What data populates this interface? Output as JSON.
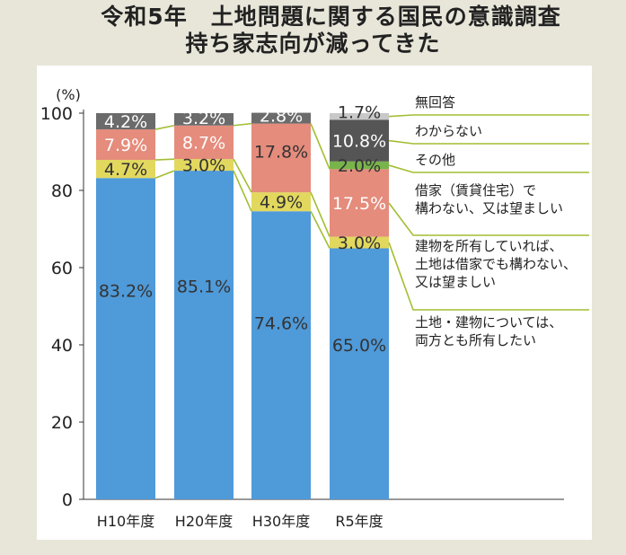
{
  "title": "令和5年　土地問題に関する国民の意識調査",
  "subtitle": "持ち家志向が減ってきた",
  "chart_data": {
    "type": "bar",
    "stacked": true,
    "percent_stacked": true,
    "categories": [
      "H10年度",
      "H20年度",
      "H30年度",
      "R5年度"
    ],
    "ylabel": "(%)",
    "ylim": [
      0,
      100
    ],
    "yticks": [
      0,
      20,
      40,
      60,
      80,
      100
    ],
    "grid": false,
    "legend_placement": "right",
    "series": [
      {
        "name": "土地・建物については、両方とも所有したい",
        "color": "#4f9ad9",
        "values": [
          83.2,
          85.1,
          74.6,
          65.0
        ],
        "labels": [
          "83.2%",
          "85.1%",
          "74.6%",
          "65.0%"
        ]
      },
      {
        "name": "建物を所有していれば、土地は借家でも構わない、又は望ましい",
        "color": "#e2d85e",
        "values": [
          4.7,
          3.0,
          4.9,
          3.0
        ],
        "labels": [
          "4.7%",
          "3.0%",
          "4.9%",
          "3.0%"
        ]
      },
      {
        "name": "借家（賃貸住宅）で構わない、又は望ましい",
        "color": "#e58c7c",
        "values": [
          7.9,
          8.7,
          17.8,
          17.5
        ],
        "labels": [
          "7.9%",
          "8.7%",
          "17.8%",
          "17.5%"
        ]
      },
      {
        "name": "その他",
        "color": "#78b44a",
        "values": [
          0,
          0,
          0,
          2.0
        ],
        "labels": [
          "",
          "",
          "",
          "2.0%"
        ]
      },
      {
        "name": "わからない",
        "color": "#555555",
        "values": [
          0,
          0,
          0,
          10.8
        ],
        "labels": [
          "",
          "",
          "",
          "10.8%"
        ]
      },
      {
        "name": "無回答",
        "color": "#6b6b6b",
        "values": [
          4.2,
          3.2,
          2.8,
          1.7
        ],
        "labels": [
          "4.2%",
          "3.2%",
          "2.8%",
          "1.7%"
        ]
      }
    ],
    "legend": [
      {
        "lines": [
          "無回答"
        ]
      },
      {
        "lines": [
          "わからない"
        ]
      },
      {
        "lines": [
          "その他"
        ]
      },
      {
        "lines": [
          "借家（賃貸住宅）で",
          "構わない、又は望ましい"
        ]
      },
      {
        "lines": [
          "建物を所有していれば、",
          "土地は借家でも構わない、",
          "又は望ましい"
        ]
      },
      {
        "lines": [
          "土地・建物については、",
          "両方とも所有したい"
        ]
      }
    ],
    "colors": {
      "connector": "#a2be32",
      "last_bar_top": "#c8c8c8",
      "dark_label": "#333333",
      "light_label": "#ffffff"
    }
  }
}
